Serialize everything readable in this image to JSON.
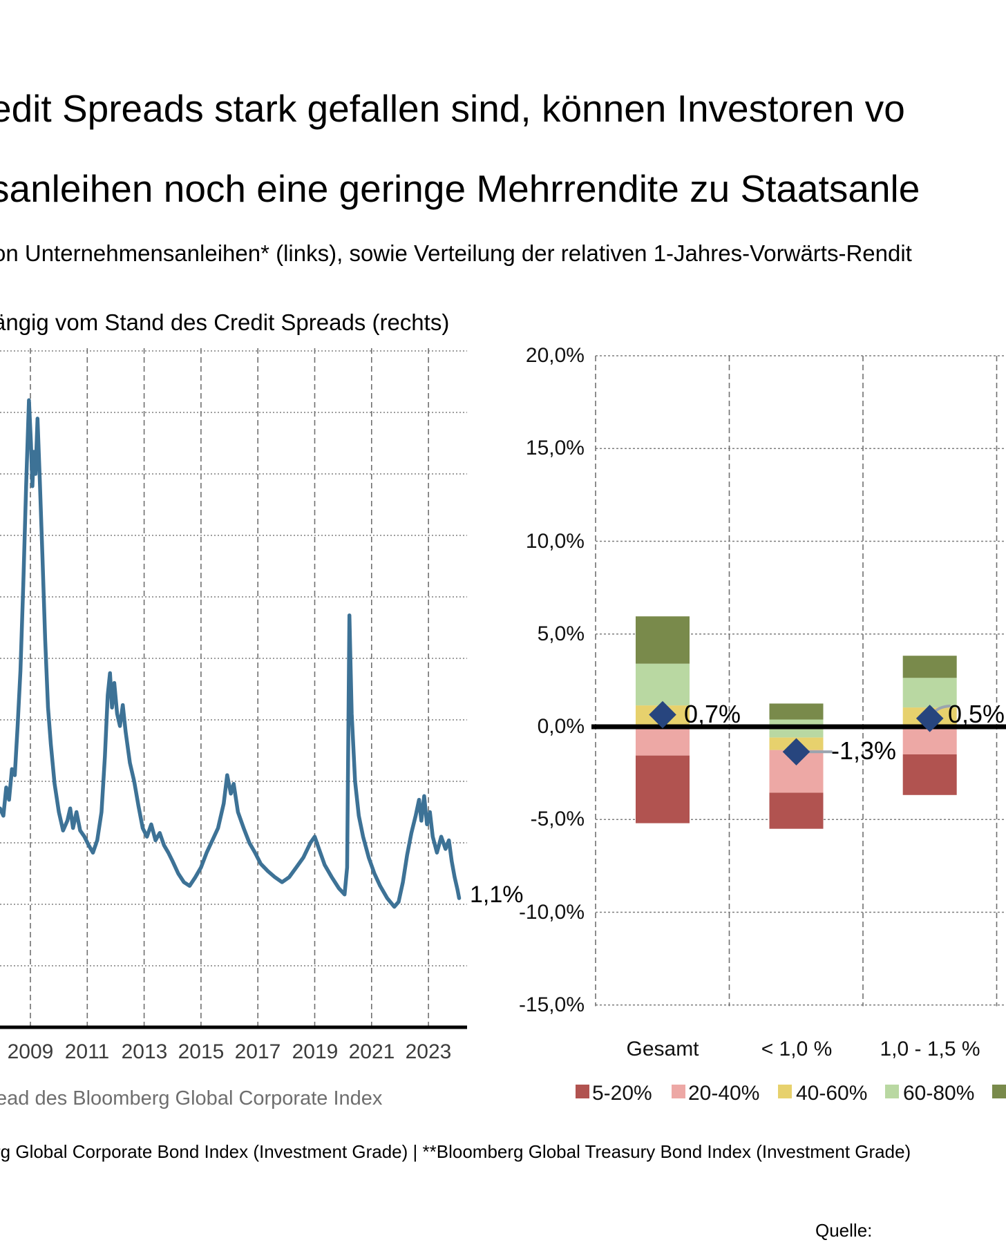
{
  "title": {
    "line1": "edit Spreads stark gefallen sind, können Investoren vo",
    "line2": "sanleihen noch eine geringe Mehrrendite zu Staatsanle"
  },
  "subtitle": {
    "line1": "on Unternehmensanleihen* (links), sowie Verteilung der relativen 1-Jahres-Vorwärts-Rendit",
    "line2": "ängig vom Stand des Credit Spreads (rechts)"
  },
  "chart_data": [
    {
      "type": "line",
      "name": "credit-spread-history",
      "legend_label": "ead des Bloomberg Global Corporate Index",
      "end_label": "1,1%",
      "line_color": "#3d7296",
      "x_tick_labels": [
        "2009",
        "2011",
        "2013",
        "2015",
        "2017",
        "2019",
        "2021",
        "2023"
      ],
      "x_tick_years": [
        2009,
        2011,
        2013,
        2015,
        2017,
        2019,
        2021,
        2023
      ],
      "y_axis": {
        "unit": "%",
        "gridline_step": 0.5,
        "min": 0,
        "max": 5.5,
        "labels_visible": false
      },
      "series": [
        {
          "name": "Credit Spread",
          "points": [
            [
              2007.93,
              1.78
            ],
            [
              2008.05,
              1.72
            ],
            [
              2008.15,
              1.95
            ],
            [
              2008.25,
              1.85
            ],
            [
              2008.35,
              2.1
            ],
            [
              2008.45,
              2.05
            ],
            [
              2008.55,
              2.45
            ],
            [
              2008.65,
              2.9
            ],
            [
              2008.75,
              3.6
            ],
            [
              2008.85,
              4.4
            ],
            [
              2008.95,
              5.1
            ],
            [
              2009.02,
              4.75
            ],
            [
              2009.07,
              4.4
            ],
            [
              2009.12,
              4.68
            ],
            [
              2009.18,
              4.5
            ],
            [
              2009.25,
              4.95
            ],
            [
              2009.33,
              4.45
            ],
            [
              2009.42,
              3.85
            ],
            [
              2009.52,
              3.15
            ],
            [
              2009.62,
              2.6
            ],
            [
              2009.72,
              2.3
            ],
            [
              2009.85,
              1.98
            ],
            [
              2010.0,
              1.75
            ],
            [
              2010.15,
              1.6
            ],
            [
              2010.3,
              1.68
            ],
            [
              2010.4,
              1.78
            ],
            [
              2010.5,
              1.62
            ],
            [
              2010.62,
              1.75
            ],
            [
              2010.75,
              1.6
            ],
            [
              2010.9,
              1.55
            ],
            [
              2011.05,
              1.48
            ],
            [
              2011.2,
              1.42
            ],
            [
              2011.35,
              1.52
            ],
            [
              2011.5,
              1.75
            ],
            [
              2011.62,
              2.2
            ],
            [
              2011.72,
              2.7
            ],
            [
              2011.8,
              2.88
            ],
            [
              2011.87,
              2.6
            ],
            [
              2011.95,
              2.8
            ],
            [
              2012.05,
              2.55
            ],
            [
              2012.15,
              2.45
            ],
            [
              2012.25,
              2.62
            ],
            [
              2012.35,
              2.4
            ],
            [
              2012.5,
              2.15
            ],
            [
              2012.65,
              2.0
            ],
            [
              2012.8,
              1.8
            ],
            [
              2012.95,
              1.62
            ],
            [
              2013.1,
              1.55
            ],
            [
              2013.25,
              1.65
            ],
            [
              2013.4,
              1.52
            ],
            [
              2013.55,
              1.58
            ],
            [
              2013.7,
              1.48
            ],
            [
              2013.85,
              1.42
            ],
            [
              2014.0,
              1.35
            ],
            [
              2014.2,
              1.25
            ],
            [
              2014.4,
              1.18
            ],
            [
              2014.6,
              1.15
            ],
            [
              2014.8,
              1.22
            ],
            [
              2015.0,
              1.3
            ],
            [
              2015.2,
              1.42
            ],
            [
              2015.4,
              1.52
            ],
            [
              2015.6,
              1.62
            ],
            [
              2015.8,
              1.82
            ],
            [
              2015.92,
              2.05
            ],
            [
              2016.05,
              1.9
            ],
            [
              2016.15,
              1.98
            ],
            [
              2016.3,
              1.75
            ],
            [
              2016.5,
              1.62
            ],
            [
              2016.7,
              1.5
            ],
            [
              2016.9,
              1.42
            ],
            [
              2017.1,
              1.33
            ],
            [
              2017.35,
              1.27
            ],
            [
              2017.6,
              1.22
            ],
            [
              2017.85,
              1.18
            ],
            [
              2018.1,
              1.22
            ],
            [
              2018.35,
              1.3
            ],
            [
              2018.6,
              1.38
            ],
            [
              2018.85,
              1.5
            ],
            [
              2019.0,
              1.55
            ],
            [
              2019.15,
              1.45
            ],
            [
              2019.35,
              1.32
            ],
            [
              2019.6,
              1.22
            ],
            [
              2019.85,
              1.13
            ],
            [
              2020.05,
              1.08
            ],
            [
              2020.14,
              1.3
            ],
            [
              2020.22,
              3.35
            ],
            [
              2020.3,
              2.55
            ],
            [
              2020.42,
              2.0
            ],
            [
              2020.55,
              1.72
            ],
            [
              2020.7,
              1.55
            ],
            [
              2020.9,
              1.38
            ],
            [
              2021.1,
              1.25
            ],
            [
              2021.3,
              1.15
            ],
            [
              2021.55,
              1.05
            ],
            [
              2021.8,
              0.98
            ],
            [
              2021.95,
              1.02
            ],
            [
              2022.1,
              1.18
            ],
            [
              2022.25,
              1.4
            ],
            [
              2022.4,
              1.58
            ],
            [
              2022.55,
              1.72
            ],
            [
              2022.67,
              1.85
            ],
            [
              2022.75,
              1.68
            ],
            [
              2022.85,
              1.88
            ],
            [
              2022.95,
              1.65
            ],
            [
              2023.05,
              1.75
            ],
            [
              2023.15,
              1.55
            ],
            [
              2023.3,
              1.42
            ],
            [
              2023.45,
              1.55
            ],
            [
              2023.6,
              1.45
            ],
            [
              2023.72,
              1.52
            ],
            [
              2023.82,
              1.35
            ],
            [
              2023.92,
              1.22
            ],
            [
              2024.02,
              1.12
            ],
            [
              2024.08,
              1.05
            ]
          ]
        }
      ]
    },
    {
      "type": "bar",
      "name": "forward-return-distribution",
      "categories": [
        "Gesamt",
        "< 1,0 %",
        "1,0 - 1,5 %"
      ],
      "y_tick_labels": [
        "20,0%",
        "15,0%",
        "10,0%",
        "5,0%",
        "0,0%",
        "-5,0%",
        "-10,0%",
        "-15,0%"
      ],
      "y_tick_values": [
        20,
        15,
        10,
        5,
        0,
        -5,
        -10,
        -15
      ],
      "ylim": [
        -15,
        20
      ],
      "bands": [
        {
          "label": "5-20%",
          "color": "#b15350"
        },
        {
          "label": "20-40%",
          "color": "#eda8a5"
        },
        {
          "label": "40-60%",
          "color": "#e7d16d"
        },
        {
          "label": "60-80%",
          "color": "#b9d8a2"
        },
        {
          "label": "",
          "color": "#798a4b"
        }
      ],
      "marker_color": "#27457e",
      "bars": [
        {
          "category": "Gesamt",
          "p5": -5.2,
          "p20": -1.55,
          "p40": 0.0,
          "p60": 1.15,
          "p80": 3.4,
          "p95": 5.95,
          "mean": 0.65,
          "mean_label": "0,7%"
        },
        {
          "category": "< 1,0 %",
          "p5": -5.5,
          "p20": -3.55,
          "p40": -1.25,
          "p60": -0.58,
          "p80": 0.39,
          "p95": 1.25,
          "mean": -1.35,
          "mean_label": "-1,3%"
        },
        {
          "category": "1,0 - 1,5 %",
          "p5": -3.68,
          "p20": -1.49,
          "p40": 0.0,
          "p60": 1.04,
          "p80": 2.64,
          "p95": 3.83,
          "mean": 0.45,
          "mean_label": "0,5%"
        }
      ]
    }
  ],
  "footnote": "rg Global Corporate Bond Index (Investment Grade) | **Bloomberg Global Treasury Bond Index (Investment Grade)",
  "source_label": "Quelle:"
}
